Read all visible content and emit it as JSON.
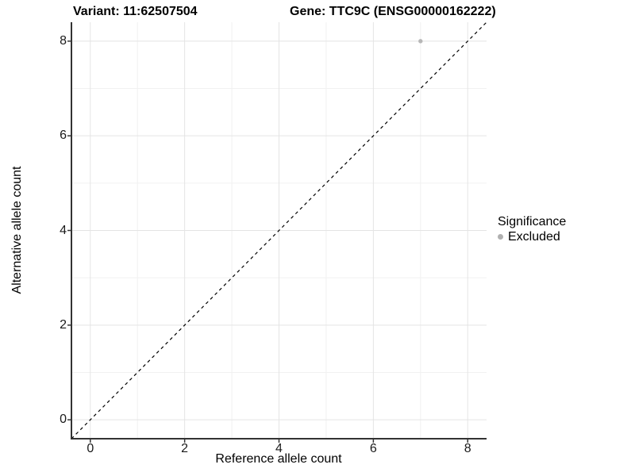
{
  "chart_data": {
    "type": "scatter",
    "titles": {
      "left": "Variant: 11:62507504",
      "right": "Gene: TTC9C (ENSG00000162222)"
    },
    "xlabel": "Reference allele count",
    "ylabel": "Alternative allele count",
    "xlim": [
      -0.4,
      8.4
    ],
    "ylim": [
      -0.4,
      8.4
    ],
    "x_ticks": [
      0,
      2,
      4,
      6,
      8
    ],
    "y_ticks": [
      0,
      2,
      4,
      6,
      8
    ],
    "x_minor_ticks": [
      1,
      3,
      5,
      7
    ],
    "y_minor_ticks": [
      1,
      3,
      5,
      7
    ],
    "grid": true,
    "series": [
      {
        "name": "Excluded",
        "color": "#b7b7b7",
        "points": [
          {
            "x": 7,
            "y": 8
          }
        ]
      }
    ],
    "reference_line": {
      "slope": 1,
      "intercept": 0,
      "style": "dashed",
      "color": "#000000"
    },
    "legend": {
      "title": "Significance",
      "position": "right",
      "items": [
        {
          "label": "Excluded",
          "color": "#b0b0b0"
        }
      ]
    }
  },
  "colors": {
    "background": "#ffffff",
    "grid_major": "#e4e4e4",
    "grid_minor": "#f1f1f1",
    "axis_line": "#333333",
    "tick_text": "#1a1a1a"
  }
}
